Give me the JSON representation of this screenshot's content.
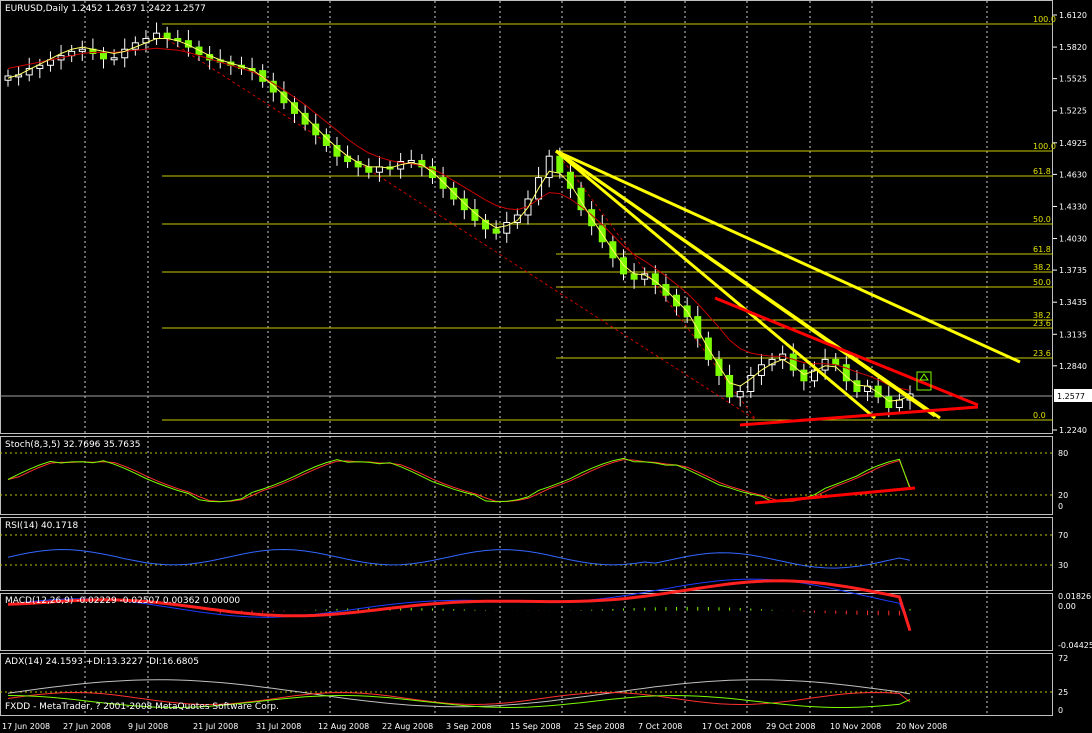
{
  "colors": {
    "background": "#000000",
    "bull_candle": "#7cfc00",
    "bear_candle": "#ffffff",
    "fast_ma": "#ffff66",
    "slow_ma": "#cc0000",
    "fib": "#e0e000",
    "trendline_yellow": "#ffff00",
    "trendline_red": "#ff0000",
    "stoch_main": "#7cfc00",
    "stoch_signal": "#ff3030",
    "rsi": "#3366ff",
    "macd": "#1e3cff",
    "macd_signal": "#ff2020",
    "adx": "#c0c0c0",
    "plus_di": "#ff3030",
    "minus_di": "#7cfc00",
    "axis_text": "#ffffff"
  },
  "header": {
    "main": "EURUSD,Daily  1.2452 1.2637 1.2422 1.2577",
    "stoch": "Stoch(8,3,5) 32.7696 35.7635",
    "rsi": "RSI(14) 40.1718",
    "macd": "MACD(12,26,9) -0.02229 -0.02507 0.00362 0.00000",
    "adx": "ADX(14) 24.1593 +DI:13.3227 -DI:16.6805",
    "footer": "FXDD - MetaTrader, ? 2001-2008 MetaQuotes Software Corp."
  },
  "current_price_label": "1.2577",
  "chart_data": {
    "type": "candlestick",
    "symbol": "EURUSD",
    "timeframe": "Daily",
    "last_bar": {
      "open": 1.2452,
      "high": 1.2637,
      "low": 1.2422,
      "close": 1.2577
    },
    "x_tick_labels": [
      "17 Jun 2008",
      "27 Jun 2008",
      "9 Jul 2008",
      "21 Jul 2008",
      "31 Jul 2008",
      "12 Aug 2008",
      "22 Aug 2008",
      "3 Sep 2008",
      "15 Sep 2008",
      "25 Sep 2008",
      "7 Oct 2008",
      "17 Oct 2008",
      "29 Oct 2008",
      "10 Nov 2008",
      "20 Nov 2008"
    ],
    "price_axis": {
      "range": [
        1.224,
        1.612
      ],
      "ticks": [
        "1.6120",
        "1.5820",
        "1.5525",
        "1.5225",
        "1.4925",
        "1.4630",
        "1.4330",
        "1.4030",
        "1.3735",
        "1.3435",
        "1.3135",
        "1.2840",
        "1.2240"
      ]
    },
    "close_path": [
      1.555,
      1.556,
      1.562,
      1.565,
      1.57,
      1.574,
      1.578,
      1.58,
      1.576,
      1.571,
      1.572,
      1.58,
      1.586,
      1.59,
      1.595,
      1.59,
      1.588,
      1.582,
      1.575,
      1.57,
      1.568,
      1.565,
      1.562,
      1.56,
      1.55,
      1.54,
      1.53,
      1.52,
      1.51,
      1.5,
      1.49,
      1.48,
      1.475,
      1.47,
      1.465,
      1.47,
      1.468,
      1.475,
      1.476,
      1.47,
      1.46,
      1.45,
      1.44,
      1.43,
      1.42,
      1.412,
      1.408,
      1.418,
      1.425,
      1.44,
      1.46,
      1.48,
      1.465,
      1.45,
      1.43,
      1.415,
      1.4,
      1.385,
      1.37,
      1.365,
      1.37,
      1.36,
      1.35,
      1.34,
      1.33,
      1.31,
      1.29,
      1.275,
      1.255,
      1.26,
      1.275,
      1.285,
      1.29,
      1.295,
      1.28,
      1.27,
      1.28,
      1.29,
      1.285,
      1.27,
      1.26,
      1.265,
      1.255,
      1.245,
      1.252,
      1.2577
    ],
    "fast_ma_path": [
      1.553,
      1.556,
      1.561,
      1.566,
      1.571,
      1.576,
      1.58,
      1.582,
      1.58,
      1.578,
      1.576,
      1.578,
      1.582,
      1.586,
      1.59,
      1.59,
      1.588,
      1.584,
      1.579,
      1.574,
      1.57,
      1.567,
      1.564,
      1.561,
      1.554,
      1.546,
      1.537,
      1.527,
      1.517,
      1.507,
      1.497,
      1.488,
      1.48,
      1.474,
      1.47,
      1.47,
      1.469,
      1.472,
      1.474,
      1.472,
      1.465,
      1.456,
      1.446,
      1.436,
      1.427,
      1.419,
      1.413,
      1.415,
      1.42,
      1.432,
      1.45,
      1.466,
      1.464,
      1.454,
      1.438,
      1.422,
      1.407,
      1.392,
      1.378,
      1.37,
      1.369,
      1.363,
      1.355,
      1.345,
      1.335,
      1.318,
      1.3,
      1.284,
      1.268,
      1.265,
      1.272,
      1.28,
      1.286,
      1.29,
      1.284,
      1.276,
      1.279,
      1.284,
      1.283,
      1.274,
      1.266,
      1.265,
      1.259,
      1.251,
      1.252,
      1.256
    ],
    "slow_ma_path": [
      1.562,
      1.564,
      1.566,
      1.568,
      1.57,
      1.572,
      1.574,
      1.576,
      1.577,
      1.577,
      1.577,
      1.578,
      1.579,
      1.58,
      1.581,
      1.58,
      1.579,
      1.577,
      1.574,
      1.571,
      1.568,
      1.565,
      1.562,
      1.559,
      1.554,
      1.548,
      1.542,
      1.535,
      1.528,
      1.52,
      1.512,
      1.504,
      1.496,
      1.489,
      1.483,
      1.479,
      1.476,
      1.474,
      1.473,
      1.471,
      1.468,
      1.463,
      1.457,
      1.451,
      1.445,
      1.439,
      1.434,
      1.431,
      1.43,
      1.433,
      1.44,
      1.446,
      1.445,
      1.44,
      1.433,
      1.425,
      1.416,
      1.406,
      1.396,
      1.388,
      1.382,
      1.375,
      1.368,
      1.36,
      1.352,
      1.342,
      1.331,
      1.32,
      1.308,
      1.3,
      1.296,
      1.294,
      1.293,
      1.293,
      1.29,
      1.287,
      1.286,
      1.286,
      1.285,
      1.282,
      1.278,
      1.275,
      1.271,
      1.266,
      1.263,
      1.261
    ],
    "fib_levels_left": [
      "100.0",
      "61.8",
      "50.0",
      "38.2",
      "23.6",
      "0.0"
    ],
    "fib_levels_right": [
      "100.0",
      "61.8",
      "50.0",
      "38.2",
      "23.6"
    ],
    "stochastic": {
      "params": "8,3,5",
      "main": 32.7696,
      "signal": 35.7635,
      "levels": [
        "80",
        "20",
        "0"
      ],
      "range": [
        0,
        100
      ]
    },
    "rsi": {
      "period": 14,
      "value": 40.1718,
      "levels": [
        "70",
        "30"
      ],
      "range": [
        0,
        100
      ]
    },
    "macd": {
      "params": "12,26,9",
      "values": [
        -0.02229,
        -0.02507,
        0.00362,
        0.0
      ],
      "axis": [
        "0.01826",
        "0.00",
        "-0.04425"
      ]
    },
    "adx": {
      "period": 14,
      "adx": 24.1593,
      "plus_di": 13.3227,
      "minus_di": 16.6805,
      "axis": [
        "72",
        "25",
        "0"
      ]
    }
  }
}
